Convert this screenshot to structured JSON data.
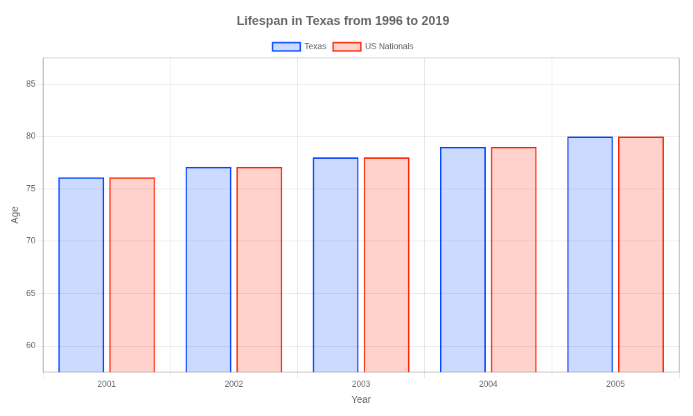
{
  "chart_data": {
    "type": "bar",
    "title": "Lifespan in Texas from 1996 to 2019",
    "x_label": "Year",
    "y_label": "Age",
    "categories": [
      "2001",
      "2002",
      "2003",
      "2004",
      "2005"
    ],
    "series": [
      {
        "name": "Texas",
        "color": "#0044ff",
        "values": [
          76.1,
          77.1,
          78.0,
          79.0,
          80.0
        ]
      },
      {
        "name": "US Nationals",
        "color": "#ff2200",
        "values": [
          76.1,
          77.1,
          78.0,
          79.0,
          80.0
        ]
      }
    ],
    "ylim": [
      57.5,
      87.5
    ],
    "yticks": [
      60,
      65,
      70,
      75,
      80,
      85
    ],
    "grid": true,
    "legend": "top"
  }
}
